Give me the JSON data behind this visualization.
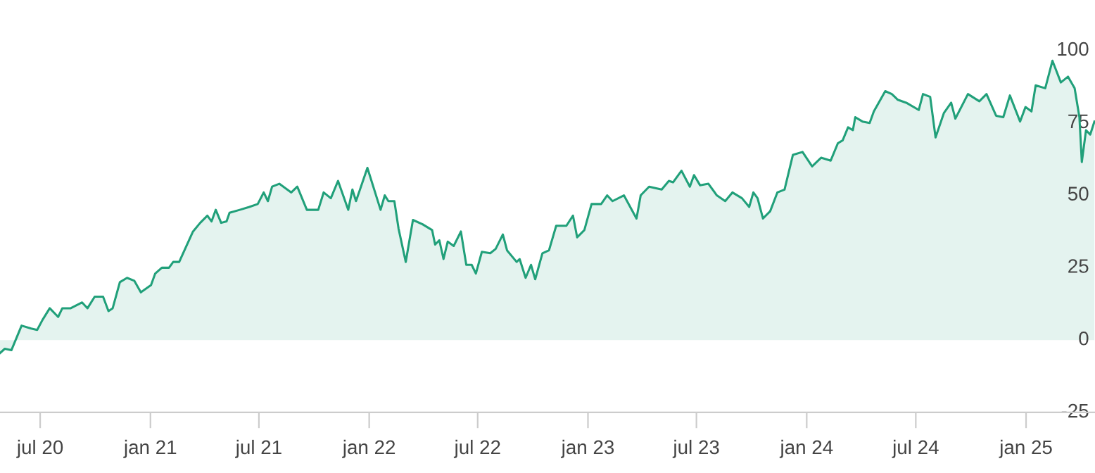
{
  "chart_data": {
    "type": "area",
    "color": "#21a07a",
    "x": [
      "2020-04-25",
      "2020-05-03",
      "2020-05-14",
      "2020-05-31",
      "2020-06-16",
      "2020-06-26",
      "2020-07-05",
      "2020-07-17",
      "2020-07-31",
      "2020-08-07",
      "2020-08-21",
      "2020-09-09",
      "2020-09-18",
      "2020-09-30",
      "2020-10-14",
      "2020-10-23",
      "2020-10-30",
      "2020-11-11",
      "2020-11-23",
      "2020-12-05",
      "2020-12-16",
      "2021-01-02",
      "2021-01-09",
      "2021-01-20",
      "2021-02-01",
      "2021-02-08",
      "2021-02-18",
      "2021-03-13",
      "2021-03-25",
      "2021-04-06",
      "2021-04-13",
      "2021-04-20",
      "2021-04-29",
      "2021-05-08",
      "2021-05-13",
      "2021-05-30",
      "2021-06-15",
      "2021-06-29",
      "2021-07-09",
      "2021-07-16",
      "2021-07-23",
      "2021-08-04",
      "2021-08-24",
      "2021-09-03",
      "2021-09-19",
      "2021-10-08",
      "2021-10-17",
      "2021-10-29",
      "2021-11-10",
      "2021-11-27",
      "2021-12-04",
      "2021-12-10",
      "2021-12-29",
      "2022-01-20",
      "2022-01-27",
      "2022-02-02",
      "2022-02-12",
      "2022-02-19",
      "2022-03-03",
      "2022-03-15",
      "2022-03-31",
      "2022-04-16",
      "2022-04-21",
      "2022-04-28",
      "2022-05-05",
      "2022-05-12",
      "2022-05-22",
      "2022-06-03",
      "2022-06-12",
      "2022-06-21",
      "2022-06-28",
      "2022-07-08",
      "2022-07-22",
      "2022-07-31",
      "2022-08-12",
      "2022-08-19",
      "2022-09-04",
      "2022-09-09",
      "2022-09-19",
      "2022-09-28",
      "2022-10-05",
      "2022-10-17",
      "2022-10-28",
      "2022-11-09",
      "2022-11-26",
      "2022-12-07",
      "2022-12-14",
      "2022-12-26",
      "2023-01-07",
      "2023-01-23",
      "2023-02-02",
      "2023-02-11",
      "2023-03-02",
      "2023-03-23",
      "2023-03-30",
      "2023-04-13",
      "2023-05-04",
      "2023-05-16",
      "2023-05-23",
      "2023-06-06",
      "2023-06-20",
      "2023-06-27",
      "2023-07-07",
      "2023-07-21",
      "2023-08-04",
      "2023-08-18",
      "2023-08-30",
      "2023-09-15",
      "2023-09-27",
      "2023-10-04",
      "2023-10-11",
      "2023-10-20",
      "2023-11-01",
      "2023-11-13",
      "2023-11-25",
      "2023-12-09",
      "2023-12-25",
      "2024-01-10",
      "2024-01-25",
      "2024-02-10",
      "2024-02-22",
      "2024-03-01",
      "2024-03-10",
      "2024-03-18",
      "2024-03-22",
      "2024-04-03",
      "2024-04-15",
      "2024-04-22",
      "2024-05-11",
      "2024-05-22",
      "2024-06-01",
      "2024-06-15",
      "2024-07-06",
      "2024-07-13",
      "2024-07-25",
      "2024-08-03",
      "2024-08-17",
      "2024-08-29",
      "2024-09-05",
      "2024-09-26",
      "2024-10-15",
      "2024-10-27",
      "2024-11-12",
      "2024-11-24",
      "2024-12-05",
      "2024-12-22",
      "2024-12-31",
      "2025-01-10",
      "2025-01-17",
      "2025-02-02",
      "2025-02-14",
      "2025-02-28",
      "2025-03-12",
      "2025-03-23",
      "2025-03-31",
      "2025-04-04",
      "2025-04-11",
      "2025-04-18",
      "2025-04-25"
    ],
    "values": [
      -4.5,
      -3,
      -3.5,
      5,
      4,
      3.5,
      7,
      11,
      8,
      11,
      11,
      13,
      11,
      15,
      15,
      10,
      11,
      20,
      21.5,
      20.5,
      16.5,
      19,
      23,
      25,
      25,
      27,
      27,
      37.5,
      40.5,
      43,
      41,
      45,
      40.5,
      41,
      44,
      45,
      46,
      47,
      51,
      48,
      53,
      54,
      51,
      53,
      45,
      45,
      51,
      49,
      55,
      45,
      52,
      48,
      59.5,
      45,
      50,
      48,
      48,
      38.5,
      27,
      41.5,
      40,
      38,
      33,
      34.5,
      28,
      34,
      32.5,
      37.5,
      26,
      26,
      23,
      30.5,
      30,
      31.5,
      36.5,
      31,
      27,
      28,
      21.5,
      26,
      21,
      30,
      31,
      39.5,
      39.5,
      43,
      35.5,
      38,
      47,
      47,
      50,
      48,
      50,
      42,
      50,
      53,
      52,
      55,
      54.5,
      58.5,
      53,
      57,
      53.5,
      54,
      50,
      48,
      51,
      49,
      46,
      51,
      49,
      42,
      44.5,
      51,
      52,
      64,
      65,
      60,
      63,
      62,
      68,
      69,
      73.5,
      72.5,
      77,
      75.5,
      75,
      79,
      86,
      85,
      83,
      82,
      79.5,
      85,
      84,
      70,
      78.5,
      82,
      76.5,
      85,
      82.5,
      85,
      77.5,
      77,
      84.5,
      75.5,
      80.5,
      79,
      88,
      87,
      96.5,
      89,
      91,
      87,
      77,
      61.5,
      72.5,
      71,
      75.5
    ],
    "xlim": [
      "2020-04-25",
      "2025-04-26"
    ],
    "xticks": [
      {
        "value": "2020-07-01",
        "label": "jul 20"
      },
      {
        "value": "2021-01-01",
        "label": "jan 21"
      },
      {
        "value": "2021-07-01",
        "label": "jul 21"
      },
      {
        "value": "2022-01-01",
        "label": "jan 22"
      },
      {
        "value": "2022-07-01",
        "label": "jul 22"
      },
      {
        "value": "2023-01-01",
        "label": "jan 23"
      },
      {
        "value": "2023-07-01",
        "label": "jul 23"
      },
      {
        "value": "2024-01-01",
        "label": "jan 24"
      },
      {
        "value": "2024-07-01",
        "label": "jul 24"
      },
      {
        "value": "2025-01-01",
        "label": "jan 25"
      }
    ],
    "ylim": [
      -25,
      100
    ],
    "yticks": [
      -25,
      0,
      25,
      50,
      75,
      100
    ],
    "grid": false
  }
}
